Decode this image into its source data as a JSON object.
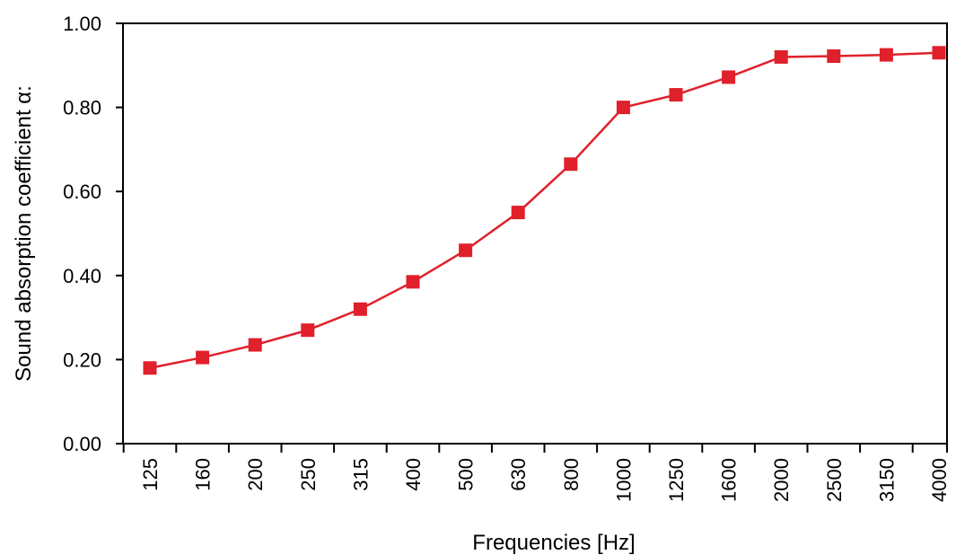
{
  "chart_data": {
    "type": "line",
    "title": "",
    "xlabel": "Frequencies  [Hz]",
    "ylabel": "Sound absorption coefficient α:",
    "categories": [
      "125",
      "160",
      "200",
      "250",
      "315",
      "400",
      "500",
      "630",
      "800",
      "1000",
      "1250",
      "1600",
      "2000",
      "2500",
      "3150",
      "4000"
    ],
    "series": [
      {
        "values": [
          0.18,
          0.205,
          0.235,
          0.27,
          0.32,
          0.385,
          0.46,
          0.55,
          0.665,
          0.8,
          0.83,
          0.872,
          0.92,
          0.922,
          0.925,
          0.93
        ]
      }
    ],
    "ylim": [
      0,
      1.0
    ],
    "yticks": [
      "0.00",
      "0.20",
      "0.40",
      "0.60",
      "0.80",
      "1.00"
    ],
    "grid": false,
    "colors": {
      "series": "#e0202b",
      "axis": "#000000"
    }
  }
}
